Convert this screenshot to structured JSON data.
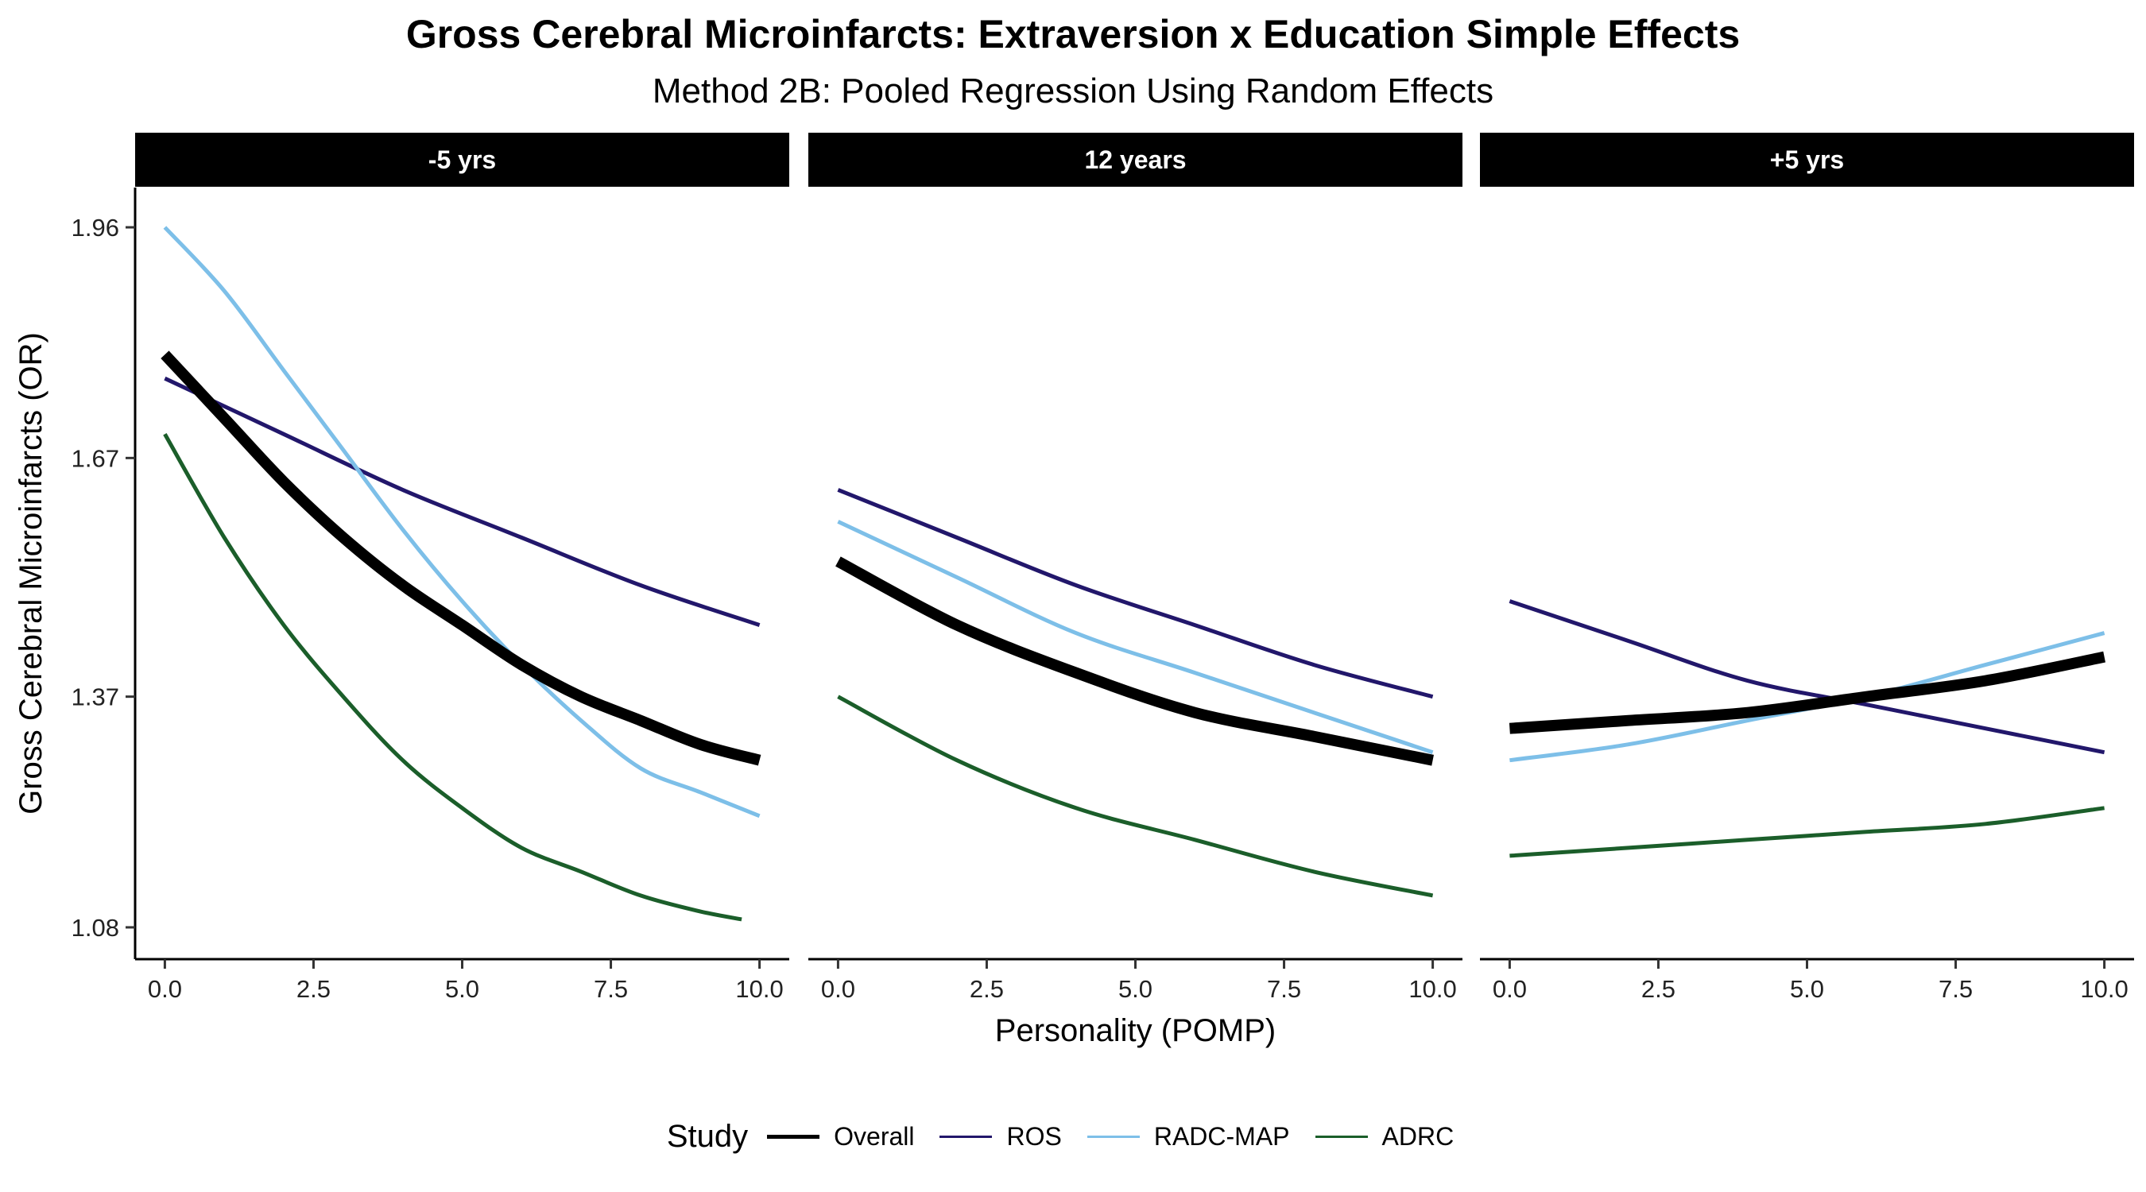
{
  "chart_data": {
    "type": "line",
    "title": "Gross Cerebral Microinfarcts: Extraversion x Education Simple Effects",
    "subtitle": "Method 2B: Pooled Regression Using Random Effects",
    "xlabel": "Personality (POMP)",
    "ylabel": "Gross Cerebral Microinfarcts (OR)",
    "xlim": [
      -0.5,
      10.5
    ],
    "ylim": [
      1.04,
      2.01
    ],
    "x_ticks": [
      0,
      2.5,
      5,
      7.5,
      10
    ],
    "x_tick_labels": [
      "0.0",
      "2.5",
      "5.0",
      "7.5",
      "10.0"
    ],
    "y_ticks": [
      1.08,
      1.37,
      1.67,
      1.96
    ],
    "y_tick_labels": [
      "1.08",
      "1.37",
      "1.67",
      "1.96"
    ],
    "grid": false,
    "legend": {
      "title": "Study",
      "position": "bottom",
      "entries": [
        {
          "name": "Overall",
          "color": "#000000",
          "width": 5
        },
        {
          "name": "ROS",
          "color": "#22176b",
          "width": 3
        },
        {
          "name": "RADC-MAP",
          "color": "#7dbfe8",
          "width": 3
        },
        {
          "name": "ADRC",
          "color": "#1b5e2a",
          "width": 3
        }
      ]
    },
    "series_styles": {
      "Overall": {
        "color": "#000000",
        "width": 14
      },
      "ROS": {
        "color": "#22176b",
        "width": 5
      },
      "RADC-MAP": {
        "color": "#7dbfe8",
        "width": 5
      },
      "ADRC": {
        "color": "#1b5e2a",
        "width": 5
      }
    },
    "panels": [
      {
        "label": "-5 yrs",
        "series": [
          {
            "name": "Overall",
            "x": [
              0,
              1,
              2,
              3,
              4,
              5,
              6,
              7,
              8,
              9,
              10
            ],
            "y": [
              1.8,
              1.72,
              1.64,
              1.57,
              1.51,
              1.46,
              1.41,
              1.37,
              1.34,
              1.31,
              1.29
            ]
          },
          {
            "name": "ROS",
            "x": [
              0,
              2,
              4,
              6,
              8,
              10
            ],
            "y": [
              1.77,
              1.7,
              1.63,
              1.57,
              1.51,
              1.46
            ]
          },
          {
            "name": "RADC-MAP",
            "x": [
              0,
              1,
              2,
              3,
              4,
              5,
              6,
              7,
              8,
              9,
              10
            ],
            "y": [
              1.96,
              1.88,
              1.78,
              1.68,
              1.58,
              1.49,
              1.41,
              1.34,
              1.28,
              1.25,
              1.22
            ]
          },
          {
            "name": "ADRC",
            "x": [
              0,
              1,
              2,
              3,
              4,
              5,
              6,
              7,
              8,
              9,
              9.7
            ],
            "y": [
              1.7,
              1.57,
              1.46,
              1.37,
              1.29,
              1.23,
              1.18,
              1.15,
              1.12,
              1.1,
              1.09
            ]
          }
        ]
      },
      {
        "label": "12 years",
        "series": [
          {
            "name": "Overall",
            "x": [
              0,
              2,
              4,
              6,
              8,
              10
            ],
            "y": [
              1.54,
              1.46,
              1.4,
              1.35,
              1.32,
              1.29
            ]
          },
          {
            "name": "ROS",
            "x": [
              0,
              2,
              4,
              6,
              8,
              10
            ],
            "y": [
              1.63,
              1.57,
              1.51,
              1.46,
              1.41,
              1.37
            ]
          },
          {
            "name": "RADC-MAP",
            "x": [
              0,
              2,
              4,
              6,
              8,
              10
            ],
            "y": [
              1.59,
              1.52,
              1.45,
              1.4,
              1.35,
              1.3
            ]
          },
          {
            "name": "ADRC",
            "x": [
              0,
              2,
              4,
              6,
              8,
              10
            ],
            "y": [
              1.37,
              1.29,
              1.23,
              1.19,
              1.15,
              1.12
            ]
          }
        ]
      },
      {
        "label": "+5 yrs",
        "series": [
          {
            "name": "Overall",
            "x": [
              0,
              2,
              4,
              6,
              8,
              10
            ],
            "y": [
              1.33,
              1.34,
              1.35,
              1.37,
              1.39,
              1.42
            ]
          },
          {
            "name": "ROS",
            "x": [
              0,
              2,
              4,
              6,
              8,
              10
            ],
            "y": [
              1.49,
              1.44,
              1.39,
              1.36,
              1.33,
              1.3
            ]
          },
          {
            "name": "RADC-MAP",
            "x": [
              0,
              2,
              4,
              6,
              8,
              10
            ],
            "y": [
              1.29,
              1.31,
              1.34,
              1.37,
              1.41,
              1.45
            ]
          },
          {
            "name": "ADRC",
            "x": [
              0,
              2,
              4,
              6,
              8,
              10
            ],
            "y": [
              1.17,
              1.18,
              1.19,
              1.2,
              1.21,
              1.23
            ]
          }
        ]
      }
    ]
  }
}
